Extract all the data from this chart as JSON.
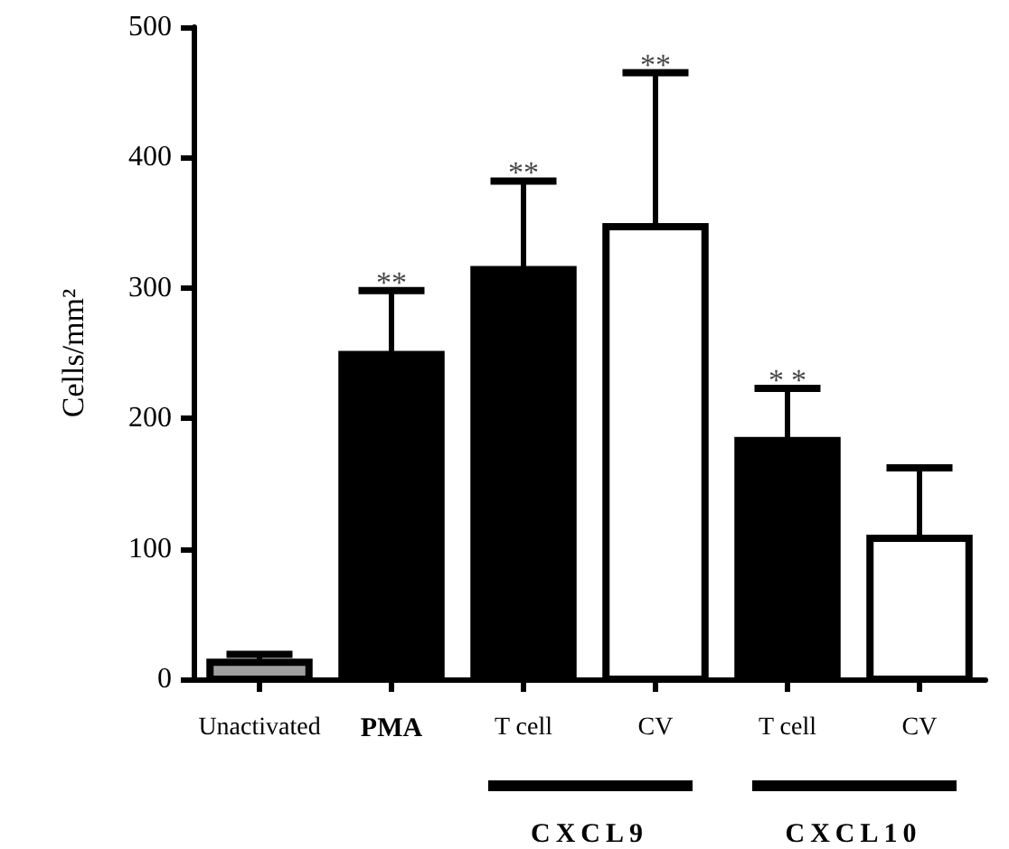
{
  "chart_data": {
    "type": "bar",
    "ylabel": "Cells/mm²",
    "categories": [
      "Unactivated",
      "PMA",
      "T cell",
      "CV",
      "T cell",
      "CV"
    ],
    "values": [
      13,
      249,
      314,
      347,
      183,
      108
    ],
    "colors": [
      "#a0a0a0",
      "#000000",
      "#000000",
      "#ffffff",
      "#000000",
      "#ffffff"
    ],
    "errors": [
      [
        13,
        19
      ],
      [
        249,
        298
      ],
      [
        314,
        382
      ],
      [
        347,
        465
      ],
      [
        183,
        223
      ],
      [
        108,
        162
      ]
    ],
    "ylim": [
      0,
      500
    ],
    "yticks": [
      0,
      100,
      200,
      300,
      400,
      500
    ],
    "grid": false,
    "annotations": [
      {
        "text": "**",
        "x": "PMA",
        "y": 298
      },
      {
        "text": "**",
        "x": "T cell",
        "y": 382
      },
      {
        "text": "**",
        "x": "CV",
        "y": 465
      },
      "**",
      "CXCL9",
      "CXCL10"
    ]
  }
}
